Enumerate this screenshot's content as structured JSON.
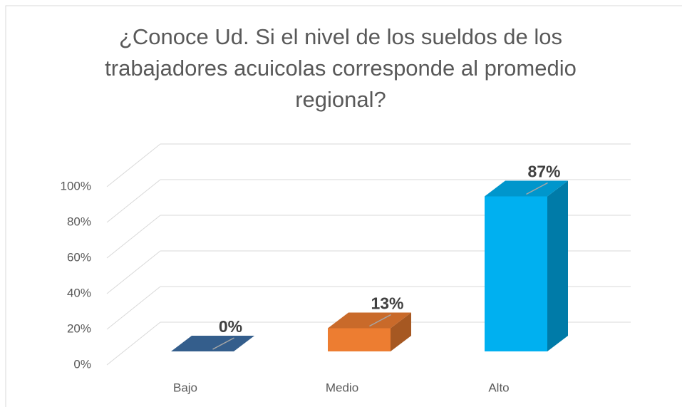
{
  "chart_data": {
    "type": "bar3d",
    "title": "¿Conoce Ud. Si el nivel de los sueldos de los trabajadores acuicolas corresponde al promedio regional?",
    "categories": [
      "Bajo",
      "Medio",
      "Alto"
    ],
    "values": [
      0,
      13,
      87
    ],
    "value_labels": [
      "0%",
      "13%",
      "87%"
    ],
    "colors": [
      "#3d6ea5",
      "#ed7d31",
      "#00b0f0"
    ],
    "ylim": [
      0,
      100
    ],
    "yticks": [
      {
        "value": 0,
        "label": "0%"
      },
      {
        "value": 20,
        "label": "20%"
      },
      {
        "value": 40,
        "label": "40%"
      },
      {
        "value": 60,
        "label": "60%"
      },
      {
        "value": 80,
        "label": "80%"
      },
      {
        "value": 100,
        "label": "100%"
      }
    ],
    "grid": true
  }
}
